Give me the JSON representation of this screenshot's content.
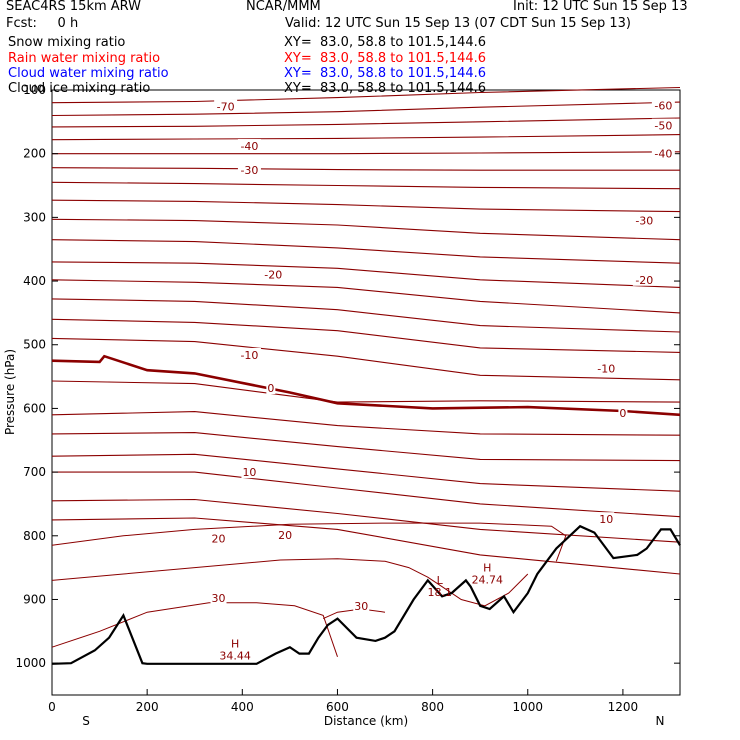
{
  "header": {
    "model": "SEAC4RS 15km ARW",
    "fcst": "Fcst:     0 h",
    "center": "NCAR/MMM",
    "init": "Init: 12 UTC Sun 15 Sep 13",
    "valid": "Valid: 12 UTC Sun 15 Sep 13 (07 CDT Sun 15 Sep 13)",
    "fields": [
      {
        "label": "Snow mixing ratio",
        "color": "#000000"
      },
      {
        "label": "Rain water mixing ratio",
        "color": "#ff0000"
      },
      {
        "label": "Cloud water mixing ratio",
        "color": "#0000ff"
      },
      {
        "label": "Cloud ice mixing ratio",
        "color": "#000000"
      }
    ],
    "xy": [
      "XY=  83.0, 58.8 to 101.5,144.6",
      "XY=  83.0, 58.8 to 101.5,144.6",
      "XY=  83.0, 58.8 to 101.5,144.6",
      "XY=  83.0, 58.8 to 101.5,144.6"
    ]
  },
  "chart_data": {
    "type": "line",
    "xlabel": "Distance (km)",
    "ylabel": "Pressure (hPa)",
    "xlim": [
      0,
      1320
    ],
    "ylim": [
      1050,
      100
    ],
    "xticks": [
      0,
      200,
      400,
      600,
      800,
      1000,
      1200
    ],
    "yticks": [
      100,
      200,
      300,
      400,
      500,
      600,
      700,
      800,
      900,
      1000
    ],
    "x_end_labels": {
      "left": "S",
      "right": "N"
    },
    "contour_color": "#8b0000",
    "terrain_color": "#000000",
    "isotherms": [
      {
        "x": [
          0,
          300,
          600,
          900,
          1320
        ],
        "p": [
          120,
          118,
          112,
          104,
          96
        ]
      },
      {
        "x": [
          0,
          300,
          600,
          900,
          1320
        ],
        "p": [
          140,
          138,
          134,
          127,
          119
        ]
      },
      {
        "x": [
          0,
          300,
          600,
          900,
          1320
        ],
        "p": [
          158,
          157,
          154,
          150,
          144
        ]
      },
      {
        "x": [
          0,
          300,
          600,
          900,
          1320
        ],
        "p": [
          178,
          177,
          176,
          174,
          170
        ]
      },
      {
        "x": [
          0,
          300,
          600,
          900,
          1320
        ],
        "p": [
          200,
          200,
          200,
          199,
          197
        ]
      },
      {
        "x": [
          0,
          300,
          600,
          900,
          1320
        ],
        "p": [
          222,
          223,
          225,
          226,
          226
        ]
      },
      {
        "x": [
          0,
          300,
          600,
          900,
          1320
        ],
        "p": [
          245,
          247,
          250,
          253,
          255
        ]
      },
      {
        "x": [
          0,
          300,
          600,
          900,
          1320
        ],
        "p": [
          273,
          275,
          280,
          287,
          291
        ]
      },
      {
        "x": [
          0,
          300,
          600,
          900,
          1320
        ],
        "p": [
          303,
          305,
          312,
          325,
          335
        ]
      },
      {
        "x": [
          0,
          300,
          600,
          900,
          1320
        ],
        "p": [
          335,
          338,
          348,
          362,
          372
        ]
      },
      {
        "x": [
          0,
          300,
          600,
          900,
          1320
        ],
        "p": [
          370,
          372,
          380,
          398,
          410
        ]
      },
      {
        "x": [
          0,
          300,
          600,
          900,
          1320
        ],
        "p": [
          398,
          402,
          410,
          432,
          450
        ]
      },
      {
        "x": [
          0,
          300,
          600,
          900,
          1320
        ],
        "p": [
          428,
          432,
          445,
          470,
          480
        ]
      },
      {
        "x": [
          0,
          300,
          600,
          900,
          1320
        ],
        "p": [
          460,
          465,
          478,
          505,
          512
        ]
      },
      {
        "x": [
          0,
          300,
          600,
          900,
          1320
        ],
        "p": [
          490,
          495,
          518,
          548,
          555
        ]
      },
      {
        "x": [
          0,
          300,
          600,
          900,
          1320
        ],
        "p": [
          557,
          561,
          590,
          588,
          590
        ]
      },
      {
        "x": [
          0,
          300,
          600,
          900,
          1320
        ],
        "p": [
          610,
          605,
          627,
          640,
          642
        ]
      },
      {
        "x": [
          0,
          300,
          600,
          900,
          1320
        ],
        "p": [
          640,
          638,
          660,
          680,
          682
        ]
      },
      {
        "x": [
          0,
          300,
          600,
          900,
          1320
        ],
        "p": [
          675,
          672,
          695,
          718,
          730
        ]
      },
      {
        "x": [
          0,
          300,
          600,
          900,
          1320
        ],
        "p": [
          700,
          700,
          725,
          750,
          770
        ]
      },
      {
        "x": [
          0,
          300,
          600,
          900,
          1320
        ],
        "p": [
          745,
          743,
          765,
          790,
          810
        ]
      },
      {
        "x": [
          0,
          300,
          600,
          900,
          1320
        ],
        "p": [
          775,
          772,
          790,
          830,
          860
        ]
      }
    ],
    "freezing_level": {
      "x": [
        0,
        100,
        110,
        200,
        300,
        500,
        600,
        800,
        1000,
        1200,
        1320
      ],
      "p": [
        525,
        527,
        518,
        540,
        545,
        575,
        592,
        600,
        598,
        604,
        610
      ]
    },
    "moist_contours": [
      {
        "x": [
          0,
          150,
          300,
          500,
          700,
          900,
          1050,
          1080,
          1060
        ],
        "p": [
          815,
          800,
          790,
          782,
          780,
          780,
          785,
          800,
          840
        ]
      },
      {
        "x": [
          0,
          150,
          300,
          480,
          600,
          700,
          750,
          790,
          820,
          860,
          910,
          960,
          1000
        ],
        "p": [
          870,
          860,
          850,
          838,
          836,
          840,
          850,
          865,
          880,
          900,
          910,
          890,
          860
        ]
      },
      {
        "x": [
          0,
          100,
          200,
          330,
          430,
          510,
          570,
          600
        ],
        "p": [
          975,
          950,
          920,
          905,
          905,
          910,
          925,
          990
        ]
      },
      {
        "x": [
          570,
          600,
          650,
          700
        ],
        "p": [
          930,
          920,
          915,
          920
        ]
      }
    ],
    "contour_labels": [
      {
        "text": "-70",
        "x": 365,
        "p": 126
      },
      {
        "text": "-60",
        "x": 1285,
        "p": 124
      },
      {
        "text": "-50",
        "x": 1285,
        "p": 156
      },
      {
        "text": "-40",
        "x": 415,
        "p": 188
      },
      {
        "text": "-40",
        "x": 1285,
        "p": 200
      },
      {
        "text": "-30",
        "x": 415,
        "p": 226
      },
      {
        "text": "-30",
        "x": 1245,
        "p": 305
      },
      {
        "text": "-20",
        "x": 465,
        "p": 390
      },
      {
        "text": "-20",
        "x": 1245,
        "p": 398
      },
      {
        "text": "-10",
        "x": 415,
        "p": 516
      },
      {
        "text": "-10",
        "x": 1165,
        "p": 537
      },
      {
        "text": "0",
        "x": 460,
        "p": 568
      },
      {
        "text": "0",
        "x": 1200,
        "p": 607
      },
      {
        "text": "10",
        "x": 415,
        "p": 700
      },
      {
        "text": "10",
        "x": 1165,
        "p": 774
      },
      {
        "text": "20",
        "x": 350,
        "p": 804
      },
      {
        "text": "20",
        "x": 490,
        "p": 799
      },
      {
        "text": "30",
        "x": 350,
        "p": 898
      },
      {
        "text": "30",
        "x": 650,
        "p": 910
      }
    ],
    "annotations": [
      {
        "mark": "H",
        "value": "34.44",
        "x": 385,
        "p": 982
      },
      {
        "mark": "L",
        "value": "18.1",
        "x": 815,
        "p": 882
      },
      {
        "mark": "H",
        "value": "24.74",
        "x": 915,
        "p": 862
      }
    ],
    "terrain": {
      "x": [
        0,
        40,
        90,
        120,
        150,
        190,
        200,
        260,
        360,
        430,
        470,
        500,
        520,
        540,
        560,
        580,
        600,
        640,
        680,
        700,
        720,
        760,
        790,
        820,
        840,
        870,
        880,
        900,
        920,
        950,
        970,
        1000,
        1020,
        1060,
        1110,
        1140,
        1180,
        1230,
        1250,
        1280,
        1300,
        1320
      ],
      "p": [
        1001,
        1000,
        980,
        960,
        925,
        1000,
        1001,
        1001,
        1001,
        1001,
        985,
        975,
        985,
        985,
        960,
        940,
        930,
        960,
        965,
        960,
        950,
        900,
        870,
        895,
        890,
        870,
        880,
        910,
        915,
        895,
        920,
        890,
        860,
        820,
        785,
        795,
        835,
        830,
        820,
        790,
        790,
        815
      ]
    }
  }
}
